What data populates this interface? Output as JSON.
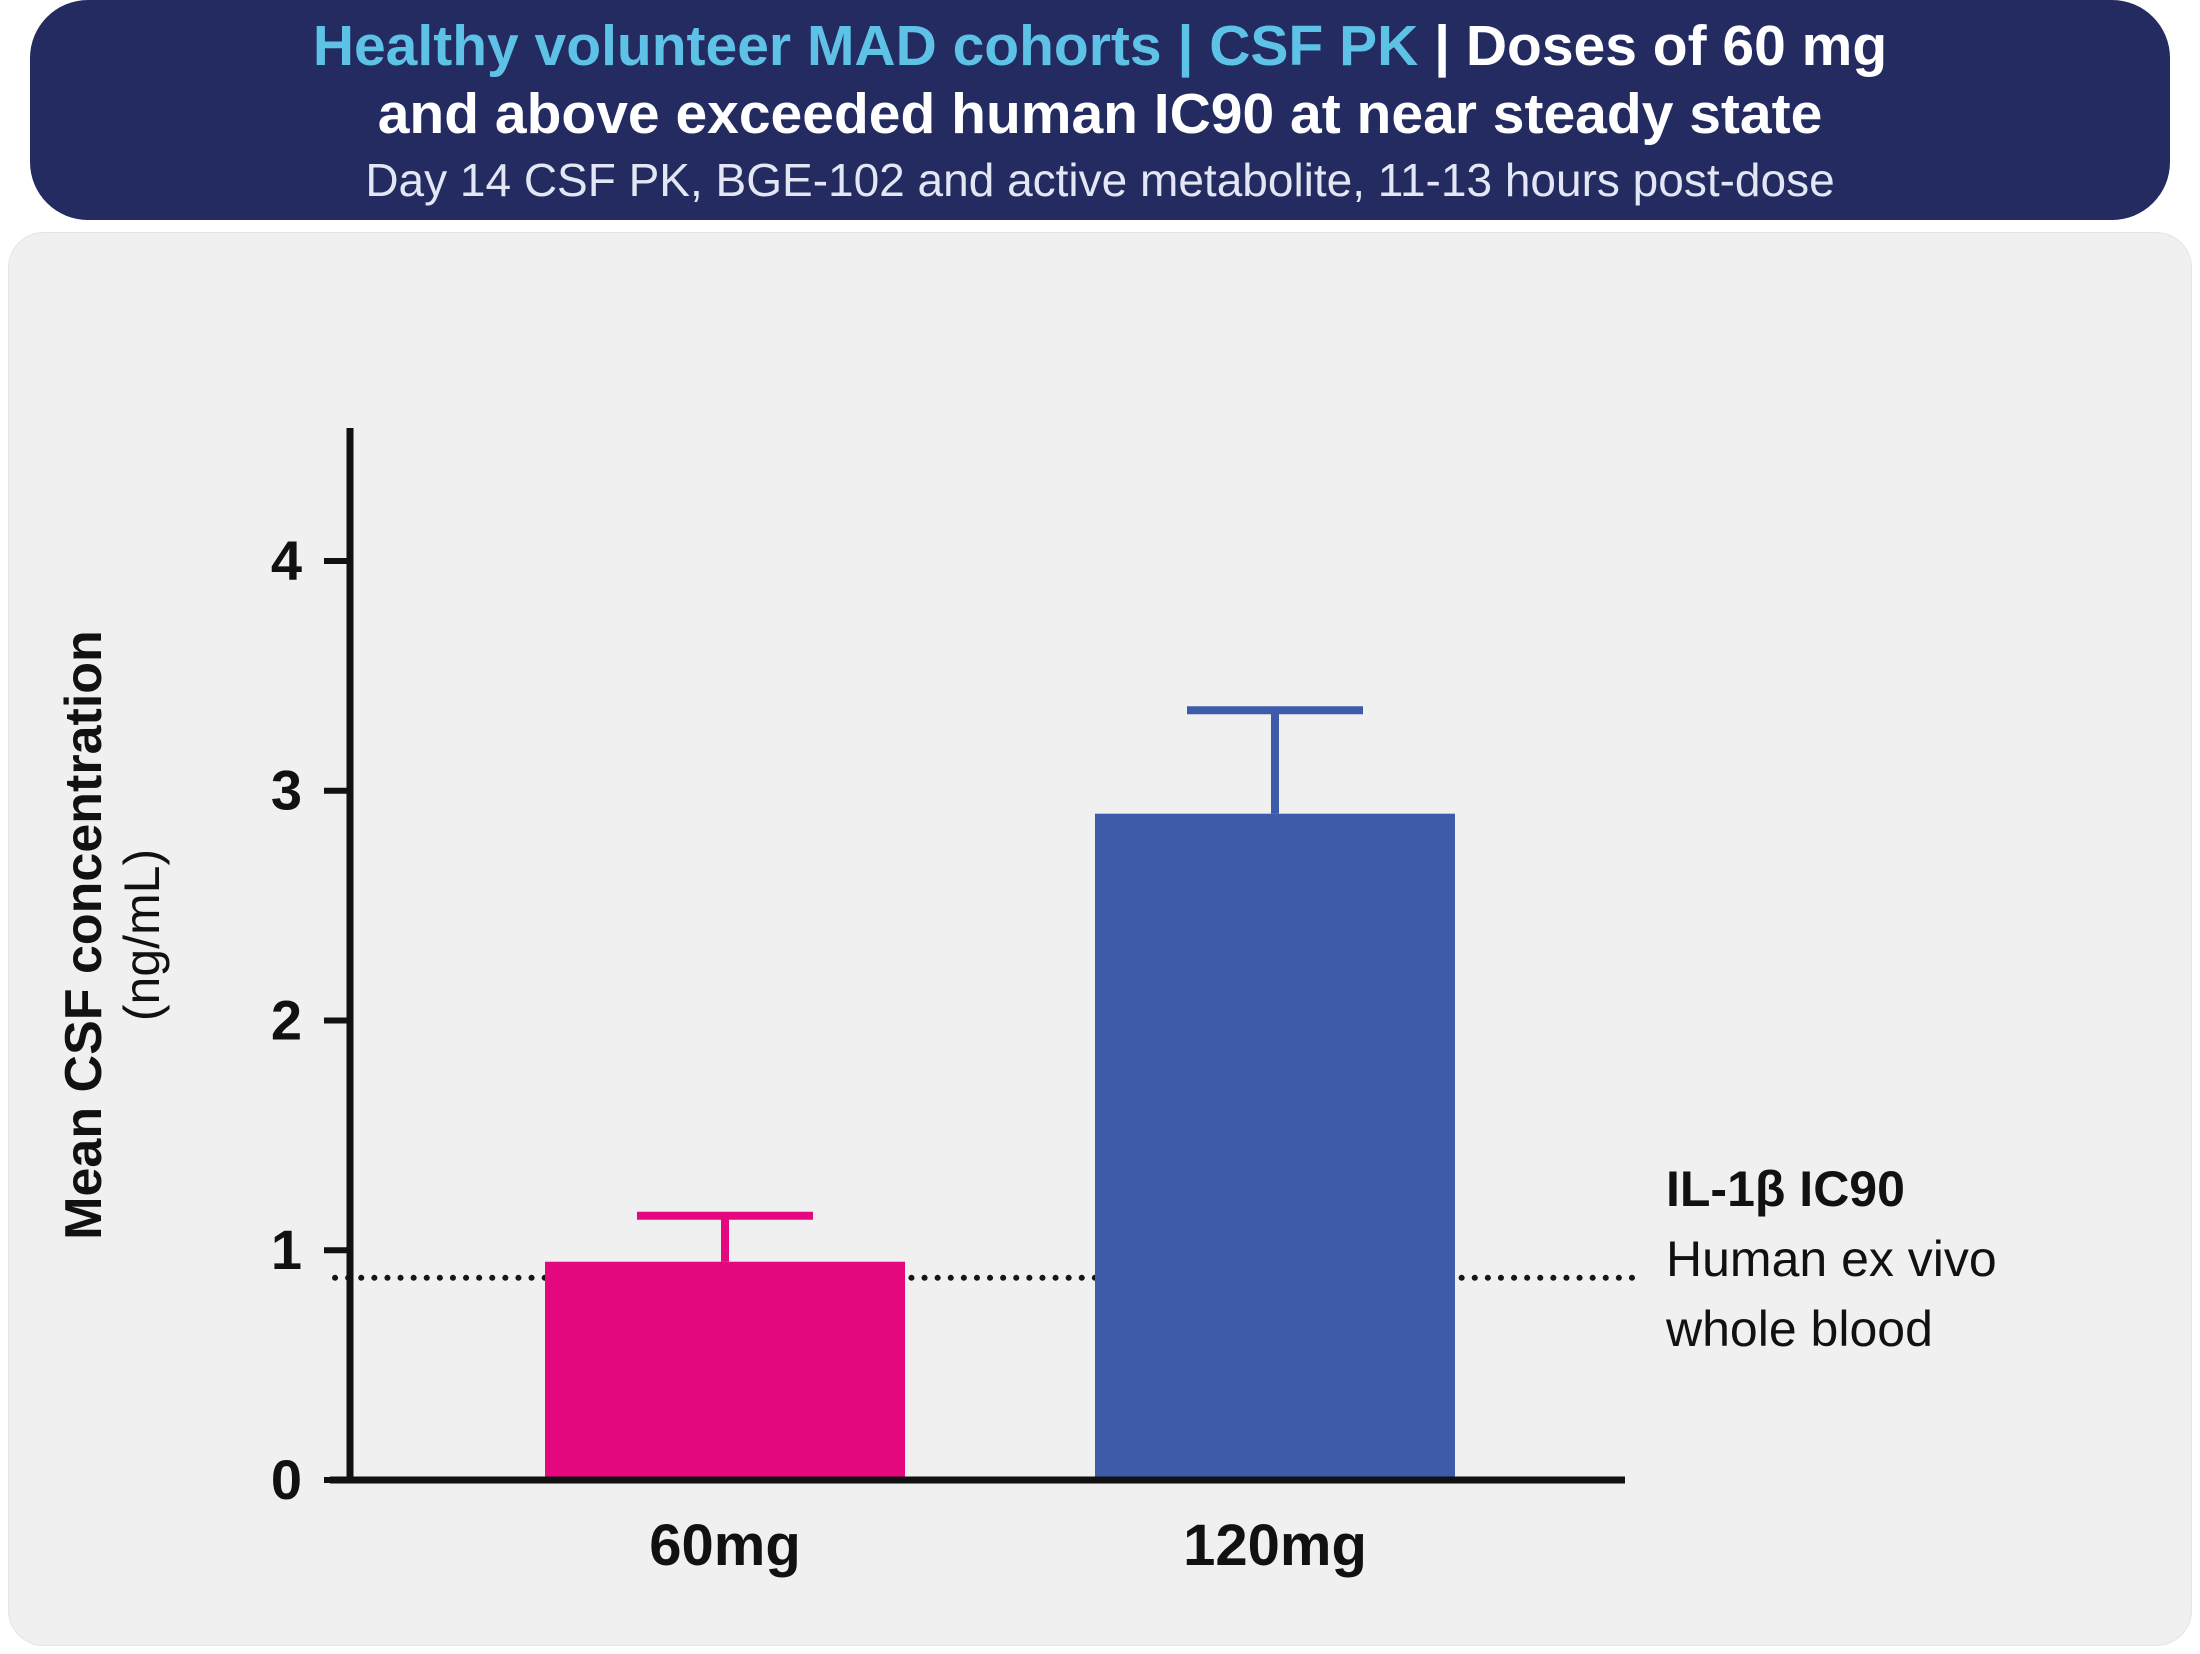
{
  "banner": {
    "title_highlight": "Healthy volunteer MAD cohorts | CSF PK ",
    "title_rest": "| Doses of 60 mg",
    "title_line2": "and above exceeded human IC90 at near steady state",
    "subtitle": "Day 14 CSF PK, BGE-102 and active metabolite, 11-13 hours post-dose",
    "colors": {
      "background": "#242b61",
      "highlight": "#5ec1e6",
      "title_text": "#ffffff",
      "subtitle_text": "#e3e7f3"
    }
  },
  "panel": {
    "background": "#f0f0f1"
  },
  "chart_data": {
    "type": "bar",
    "title": "",
    "categories": [
      "60mg",
      "120mg"
    ],
    "values": [
      0.95,
      2.9
    ],
    "errors_plus": [
      0.2,
      0.45
    ],
    "bar_colors": [
      "#e5077e",
      "#3e5ba9"
    ],
    "xlabel": "",
    "ylabel_bold": "Mean CSF concentration",
    "ylabel_units": "(ng/mL)",
    "yticks": [
      0,
      1,
      2,
      3,
      4
    ],
    "ylim": [
      0,
      4.57
    ],
    "grid": false,
    "legend": false,
    "axis_color": "#111111",
    "threshold": {
      "value": 0.88,
      "style": "dotted",
      "label_title": "IL-1β IC90",
      "label_line1": "Human ex vivo",
      "label_line2": "whole blood"
    }
  }
}
